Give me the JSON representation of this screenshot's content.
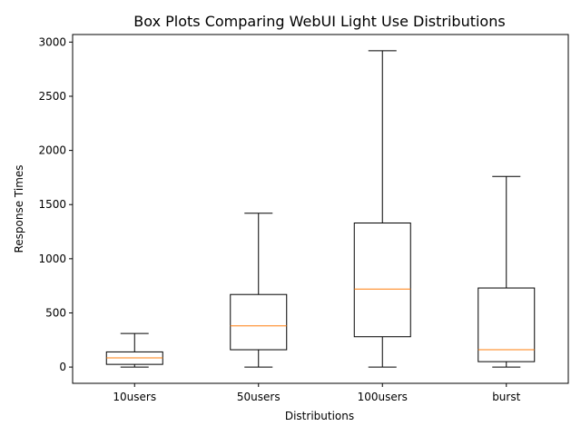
{
  "chart_data": {
    "type": "box",
    "title": "Box Plots Comparing WebUI Light Use Distributions",
    "xlabel": "Distributions",
    "ylabel": "Response Times",
    "categories": [
      "10users",
      "50users",
      "100users",
      "burst"
    ],
    "boxes": [
      {
        "name": "10users",
        "whisker_low": 0,
        "q1": 25,
        "median": 85,
        "q3": 140,
        "whisker_high": 310
      },
      {
        "name": "50users",
        "whisker_low": 0,
        "q1": 160,
        "median": 380,
        "q3": 670,
        "whisker_high": 1420
      },
      {
        "name": "100users",
        "whisker_low": 0,
        "q1": 280,
        "median": 720,
        "q3": 1330,
        "whisker_high": 2920
      },
      {
        "name": "burst",
        "whisker_low": 0,
        "q1": 50,
        "median": 160,
        "q3": 730,
        "whisker_high": 1760
      }
    ],
    "yticks": [
      0,
      500,
      1000,
      1500,
      2000,
      2500,
      3000
    ],
    "ylim": [
      -150,
      3070
    ],
    "grid": false,
    "colors": {
      "box": "#000000",
      "median": "#ff7f0e"
    }
  }
}
